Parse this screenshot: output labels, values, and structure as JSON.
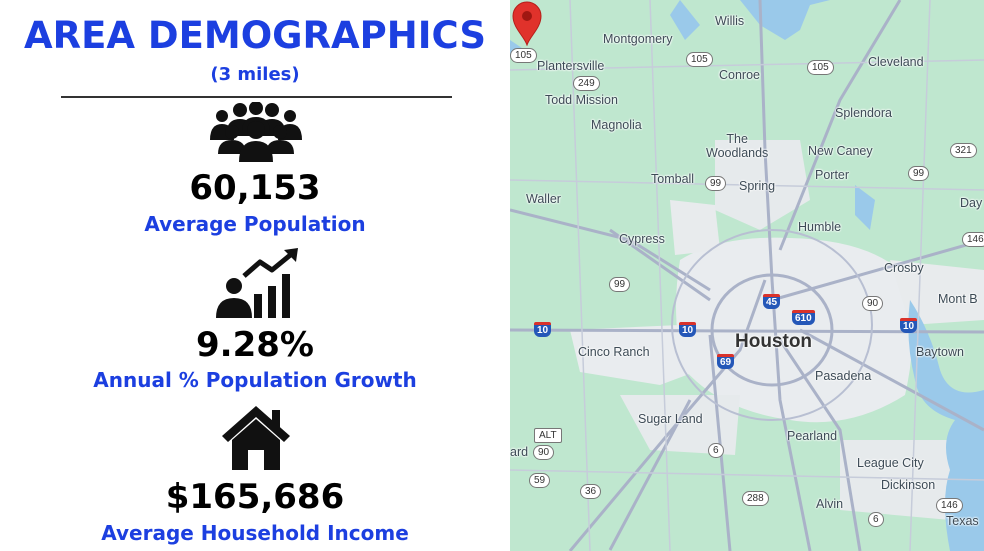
{
  "header": {
    "title": "AREA DEMOGRAPHICS",
    "subtitle": "(3 miles)"
  },
  "stats": [
    {
      "icon": "people-group-icon",
      "value": "60,153",
      "label": "Average Population"
    },
    {
      "icon": "growth-chart-icon",
      "value": "9.28%",
      "label": "Annual % Population Growth"
    },
    {
      "icon": "house-icon",
      "value": "$165,686",
      "label": "Average Household Income"
    }
  ],
  "map": {
    "places": {
      "willis": "Willis",
      "montgomery": "Montgomery",
      "plantersville": "Plantersville",
      "conroe": "Conroe",
      "cleveland": "Cleveland",
      "todd_mission": "Todd Mission",
      "splendora": "Splendora",
      "magnolia": "Magnolia",
      "the_woodlands": "The\nWoodlands",
      "new_caney": "New Caney",
      "tomball": "Tomball",
      "spring": "Spring",
      "porter": "Porter",
      "waller": "Waller",
      "day": "Day",
      "humble": "Humble",
      "cypress": "Cypress",
      "crosby": "Crosby",
      "mont_b": "Mont B",
      "cinco_ranch": "Cinco Ranch",
      "houston": "Houston",
      "baytown": "Baytown",
      "pasadena": "Pasadena",
      "sugar_land": "Sugar Land",
      "pearland": "Pearland",
      "league_city": "League City",
      "ard": "ard",
      "dickinson": "Dickinson",
      "alvin": "Alvin",
      "texas": "Texas"
    },
    "shields": {
      "s105a": "105",
      "s105b": "105",
      "s105c": "105",
      "s249": "249",
      "s321": "321",
      "s99a": "99",
      "s99b": "99",
      "s99c": "99",
      "s146a": "146",
      "s90a": "90",
      "s90b": "90",
      "s59": "59",
      "s36": "36",
      "s288": "288",
      "s6a": "6",
      "s6b": "6",
      "s146b": "146",
      "alt": "ALT"
    },
    "interstates": {
      "i10a": "10",
      "i10b": "10",
      "i10c": "10",
      "i45": "45",
      "i610": "610",
      "i69": "69"
    },
    "colors": {
      "land": "#bfe7cf",
      "urban": "#e9ecef",
      "water": "#9ac9ea",
      "road": "#aab2c8",
      "pin": "#e0322b"
    }
  }
}
